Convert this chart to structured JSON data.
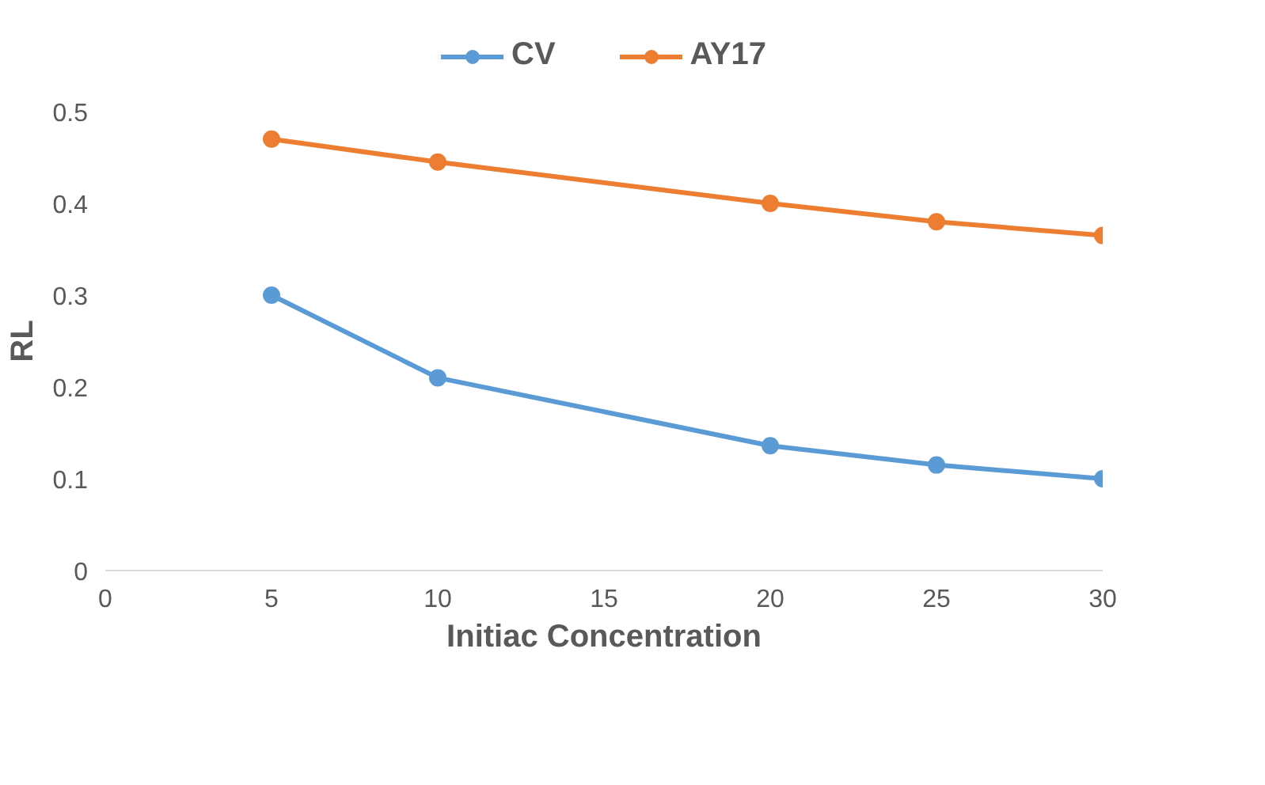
{
  "chart_data": {
    "type": "line",
    "xlabel": "Initiac Concentration",
    "ylabel": "RL",
    "x": [
      5,
      10,
      20,
      25,
      30
    ],
    "series": [
      {
        "name": "CV",
        "color": "#5b9bd5",
        "values": [
          0.3,
          0.21,
          0.136,
          0.115,
          0.1
        ]
      },
      {
        "name": "AY17",
        "color": "#ed7d31",
        "values": [
          0.47,
          0.445,
          0.4,
          0.38,
          0.365
        ]
      }
    ],
    "xlim": [
      0,
      30
    ],
    "xticks": [
      0,
      5,
      10,
      15,
      20,
      25,
      30
    ],
    "ylim": [
      0,
      0.5
    ],
    "yticks": [
      0,
      0.1,
      0.2,
      0.3,
      0.4,
      0.5
    ],
    "grid": false,
    "legend": "top",
    "marker": "circle",
    "line_style": "solid"
  }
}
